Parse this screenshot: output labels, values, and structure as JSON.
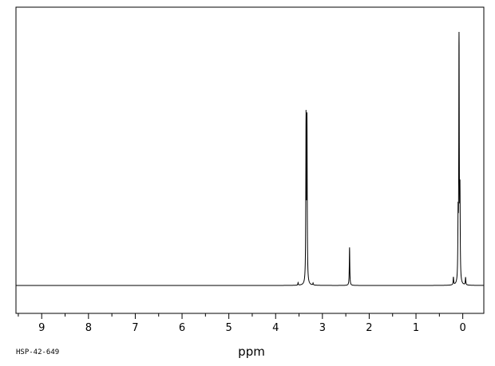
{
  "chart_data": {
    "type": "line",
    "xlabel": "ppm",
    "ylabel": "",
    "xlim": [
      9.55,
      -0.45
    ],
    "x_reversed": true,
    "ylim": [
      -0.12,
      1.05
    ],
    "grid": false,
    "tick_labels": [
      "9",
      "8",
      "7",
      "6",
      "5",
      "4",
      "3",
      "2",
      "1",
      "0"
    ],
    "tick_values": [
      9,
      8,
      7,
      6,
      5,
      4,
      3,
      2,
      1,
      0
    ],
    "minor_tick_values": [
      9.5,
      8.5,
      7.5,
      6.5,
      5.5,
      4.5,
      3.5,
      2.5,
      1.5,
      0.5
    ],
    "peaks": [
      {
        "ppm": 3.35,
        "intensity": 0.64
      },
      {
        "ppm": 3.33,
        "intensity": 0.63
      },
      {
        "ppm": 3.52,
        "intensity": 0.01
      },
      {
        "ppm": 3.2,
        "intensity": 0.008
      },
      {
        "ppm": 2.42,
        "intensity": 0.15
      },
      {
        "ppm": 0.2,
        "intensity": 0.03
      },
      {
        "ppm": 0.1,
        "intensity": 0.24
      },
      {
        "ppm": 0.08,
        "intensity": 1.0
      },
      {
        "ppm": 0.06,
        "intensity": 0.33
      },
      {
        "ppm": -0.06,
        "intensity": 0.03
      }
    ],
    "line_color": "#000000"
  },
  "footer": {
    "code": "HSP-42-649"
  }
}
